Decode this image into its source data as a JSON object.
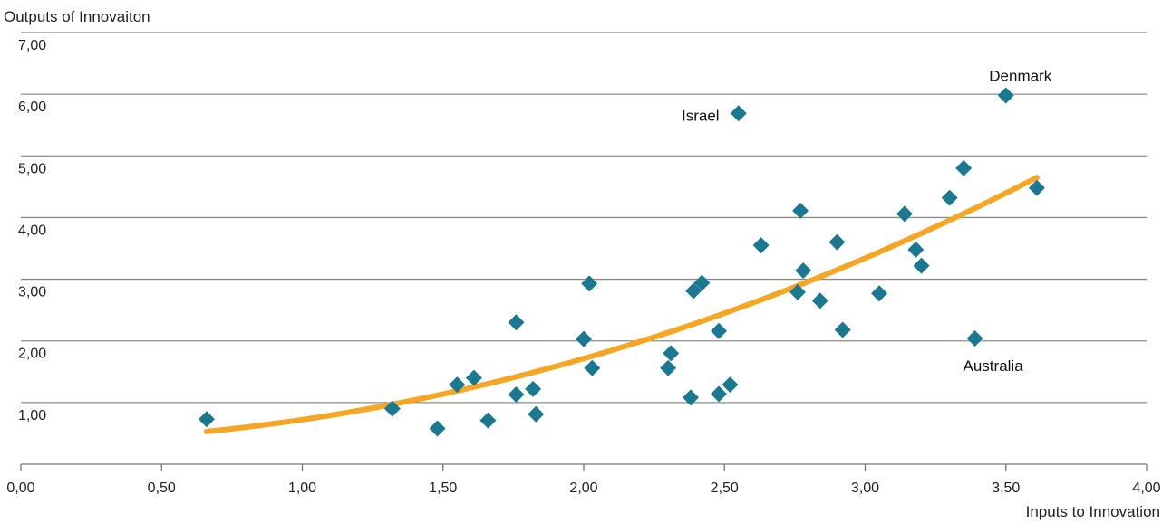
{
  "chart_data": {
    "type": "scatter",
    "title": "",
    "ylabel": "Outputs of Innovaiton",
    "xlabel": "Inputs to Innovation",
    "xlim": [
      0,
      4
    ],
    "ylim": [
      0,
      7
    ],
    "x_ticks": [
      "0,00",
      "0,50",
      "1,00",
      "1,50",
      "2,00",
      "2,50",
      "3,00",
      "3,50",
      "4,00"
    ],
    "y_ticks": [
      "1,00",
      "2,00",
      "3,00",
      "4,00",
      "5,00",
      "6,00",
      "7,00"
    ],
    "grid": "horizontal",
    "colors": {
      "points": "#1a7891",
      "trend": "#f5a623",
      "grid": "#8c8c8c"
    },
    "points": [
      {
        "x": 0.66,
        "y": 0.73
      },
      {
        "x": 1.32,
        "y": 0.9
      },
      {
        "x": 1.48,
        "y": 0.58
      },
      {
        "x": 1.55,
        "y": 1.29
      },
      {
        "x": 1.61,
        "y": 1.4
      },
      {
        "x": 1.66,
        "y": 0.71
      },
      {
        "x": 1.76,
        "y": 2.3
      },
      {
        "x": 1.76,
        "y": 1.13
      },
      {
        "x": 1.82,
        "y": 1.22
      },
      {
        "x": 1.83,
        "y": 0.81
      },
      {
        "x": 2.0,
        "y": 2.03
      },
      {
        "x": 2.02,
        "y": 2.93
      },
      {
        "x": 2.03,
        "y": 1.56
      },
      {
        "x": 2.3,
        "y": 1.56
      },
      {
        "x": 2.31,
        "y": 1.8
      },
      {
        "x": 2.38,
        "y": 1.08
      },
      {
        "x": 2.39,
        "y": 2.81
      },
      {
        "x": 2.42,
        "y": 2.94
      },
      {
        "x": 2.48,
        "y": 1.14
      },
      {
        "x": 2.48,
        "y": 2.16
      },
      {
        "x": 2.52,
        "y": 1.29
      },
      {
        "x": 2.55,
        "y": 5.69
      },
      {
        "x": 2.63,
        "y": 3.55
      },
      {
        "x": 2.76,
        "y": 2.79
      },
      {
        "x": 2.77,
        "y": 4.11
      },
      {
        "x": 2.78,
        "y": 3.14
      },
      {
        "x": 2.84,
        "y": 2.65
      },
      {
        "x": 2.9,
        "y": 3.6
      },
      {
        "x": 2.92,
        "y": 2.18
      },
      {
        "x": 3.05,
        "y": 2.77
      },
      {
        "x": 3.14,
        "y": 4.06
      },
      {
        "x": 3.18,
        "y": 3.48
      },
      {
        "x": 3.2,
        "y": 3.22
      },
      {
        "x": 3.3,
        "y": 4.32
      },
      {
        "x": 3.35,
        "y": 4.8
      },
      {
        "x": 3.39,
        "y": 2.04
      },
      {
        "x": 3.5,
        "y": 5.98
      },
      {
        "x": 3.61,
        "y": 4.48
      }
    ],
    "annotations": [
      {
        "text": "Denmark",
        "x": 3.5,
        "y": 5.98
      },
      {
        "text": "Israel",
        "x": 2.55,
        "y": 5.69
      },
      {
        "text": "Australia",
        "x": 3.39,
        "y": 2.04
      }
    ],
    "trendline": {
      "type": "polynomial",
      "points": [
        {
          "x": 0.66,
          "y": 0.53
        },
        {
          "x": 1.0,
          "y": 0.72
        },
        {
          "x": 1.5,
          "y": 1.13
        },
        {
          "x": 2.0,
          "y": 1.74
        },
        {
          "x": 2.5,
          "y": 2.44
        },
        {
          "x": 3.0,
          "y": 3.33
        },
        {
          "x": 3.3,
          "y": 3.95
        },
        {
          "x": 3.61,
          "y": 4.66
        }
      ]
    }
  }
}
